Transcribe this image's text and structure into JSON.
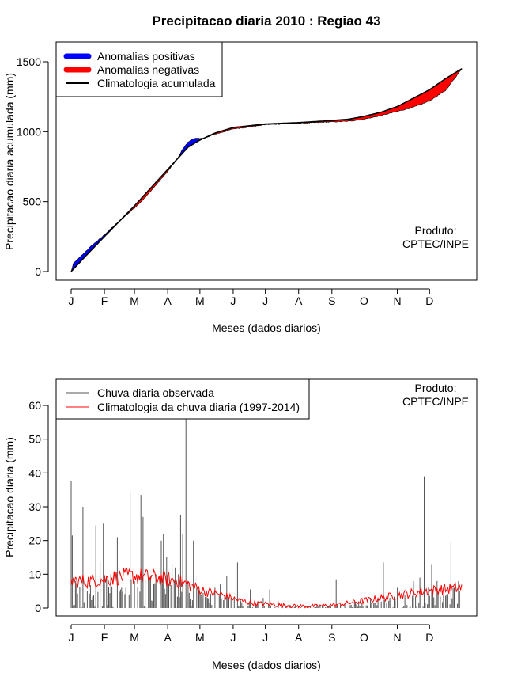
{
  "title": "Precipitacao diaria 2010 : Regiao 43",
  "charts": {
    "top": {
      "type": "area",
      "ylabel": "Precipitacao diaria acumulada (mm)",
      "xlabel": "Meses (dados diarios)",
      "ylim": [
        0,
        1600
      ],
      "yticks": [
        "0",
        "500",
        "1000",
        "1500"
      ],
      "months": [
        "J",
        "F",
        "M",
        "A",
        "M",
        "J",
        "J",
        "A",
        "S",
        "O",
        "N",
        "D"
      ],
      "legend": {
        "positive": "Anomalias positivas",
        "negative": "Anomalias negativas",
        "climatology": "Climatologia acumulada"
      },
      "product": [
        "Produto:",
        "CPTEC/INPE"
      ],
      "colors": {
        "positive": "#0000ff",
        "negative": "#ff0000",
        "climatology": "#000000"
      },
      "climatology_knots": [
        [
          1,
          0
        ],
        [
          15,
          115
        ],
        [
          32,
          250
        ],
        [
          60,
          470
        ],
        [
          91,
          730
        ],
        [
          110,
          890
        ],
        [
          121,
          940
        ],
        [
          135,
          990
        ],
        [
          152,
          1030
        ],
        [
          182,
          1055
        ],
        [
          213,
          1065
        ],
        [
          244,
          1080
        ],
        [
          260,
          1090
        ],
        [
          274,
          1110
        ],
        [
          290,
          1140
        ],
        [
          305,
          1180
        ],
        [
          320,
          1240
        ],
        [
          335,
          1300
        ],
        [
          350,
          1380
        ],
        [
          365,
          1450
        ]
      ],
      "anomaly_knots": [
        [
          1,
          0
        ],
        [
          3,
          40
        ],
        [
          10,
          35
        ],
        [
          20,
          30
        ],
        [
          30,
          15
        ],
        [
          40,
          8
        ],
        [
          55,
          -10
        ],
        [
          70,
          -25
        ],
        [
          80,
          -20
        ],
        [
          91,
          -15
        ],
        [
          100,
          0
        ],
        [
          105,
          30
        ],
        [
          115,
          40
        ],
        [
          121,
          10
        ],
        [
          128,
          -5
        ],
        [
          140,
          -10
        ],
        [
          160,
          -10
        ],
        [
          182,
          -5
        ],
        [
          213,
          -5
        ],
        [
          244,
          -10
        ],
        [
          260,
          -15
        ],
        [
          274,
          -20
        ],
        [
          290,
          -25
        ],
        [
          305,
          -35
        ],
        [
          320,
          -65
        ],
        [
          335,
          -80
        ],
        [
          350,
          -85
        ],
        [
          365,
          0
        ]
      ]
    },
    "bottom": {
      "type": "bar",
      "ylabel": "Precipitacao diaria (mm)",
      "xlabel": "Meses (dados diarios)",
      "ylim": [
        0,
        68
      ],
      "yticks": [
        "0",
        "10",
        "20",
        "30",
        "40",
        "50",
        "60"
      ],
      "months": [
        "J",
        "F",
        "M",
        "A",
        "M",
        "J",
        "J",
        "A",
        "S",
        "O",
        "N",
        "D"
      ],
      "legend": {
        "observed": "Chuva diaria observada",
        "climatology": "Climatologia da chuva diaria (1997-2014)"
      },
      "product": [
        "Produto:",
        "CPTEC/INPE"
      ],
      "colors": {
        "observed": "#555555",
        "climatology": "#ff0000"
      },
      "peaks": [
        [
          1,
          37.5
        ],
        [
          2,
          21.5
        ],
        [
          5,
          8
        ],
        [
          12,
          30
        ],
        [
          16,
          5
        ],
        [
          24,
          24.5
        ],
        [
          28,
          14
        ],
        [
          31,
          25
        ],
        [
          38,
          10
        ],
        [
          44,
          21
        ],
        [
          48,
          6
        ],
        [
          52,
          6
        ],
        [
          56,
          34.5
        ],
        [
          60,
          8
        ],
        [
          66,
          33.5
        ],
        [
          68,
          27
        ],
        [
          73,
          9
        ],
        [
          80,
          10
        ],
        [
          85,
          20
        ],
        [
          87,
          22
        ],
        [
          90,
          15
        ],
        [
          95,
          13
        ],
        [
          98,
          12
        ],
        [
          101,
          10
        ],
        [
          103,
          27.5
        ],
        [
          105,
          22
        ],
        [
          108,
          56
        ],
        [
          110,
          8
        ],
        [
          115,
          20
        ],
        [
          118,
          6
        ],
        [
          122,
          4
        ],
        [
          128,
          3
        ],
        [
          135,
          6
        ],
        [
          140,
          7
        ],
        [
          146,
          9.5
        ],
        [
          150,
          3
        ],
        [
          156,
          13.5
        ],
        [
          162,
          4
        ],
        [
          168,
          5.5
        ],
        [
          176,
          5.5
        ],
        [
          180,
          3
        ],
        [
          186,
          5.5
        ],
        [
          194,
          2
        ],
        [
          205,
          1
        ],
        [
          230,
          1
        ],
        [
          248,
          8.5
        ],
        [
          265,
          2
        ],
        [
          280,
          3
        ],
        [
          292,
          13.5
        ],
        [
          298,
          3
        ],
        [
          305,
          6
        ],
        [
          312,
          4
        ],
        [
          320,
          8
        ],
        [
          326,
          9
        ],
        [
          330,
          39
        ],
        [
          334,
          6
        ],
        [
          337,
          13
        ],
        [
          342,
          8
        ],
        [
          348,
          4
        ],
        [
          355,
          19.5
        ],
        [
          358,
          6
        ],
        [
          362,
          8
        ]
      ],
      "climatology_knots": [
        [
          1,
          8
        ],
        [
          20,
          8
        ],
        [
          40,
          9
        ],
        [
          60,
          9.5
        ],
        [
          80,
          9
        ],
        [
          100,
          8
        ],
        [
          110,
          7
        ],
        [
          125,
          5
        ],
        [
          140,
          4
        ],
        [
          155,
          2.5
        ],
        [
          170,
          1.5
        ],
        [
          190,
          1
        ],
        [
          210,
          0.6
        ],
        [
          230,
          0.6
        ],
        [
          250,
          1
        ],
        [
          270,
          2
        ],
        [
          290,
          3
        ],
        [
          310,
          4
        ],
        [
          330,
          5
        ],
        [
          345,
          5.5
        ],
        [
          365,
          6
        ]
      ]
    }
  }
}
